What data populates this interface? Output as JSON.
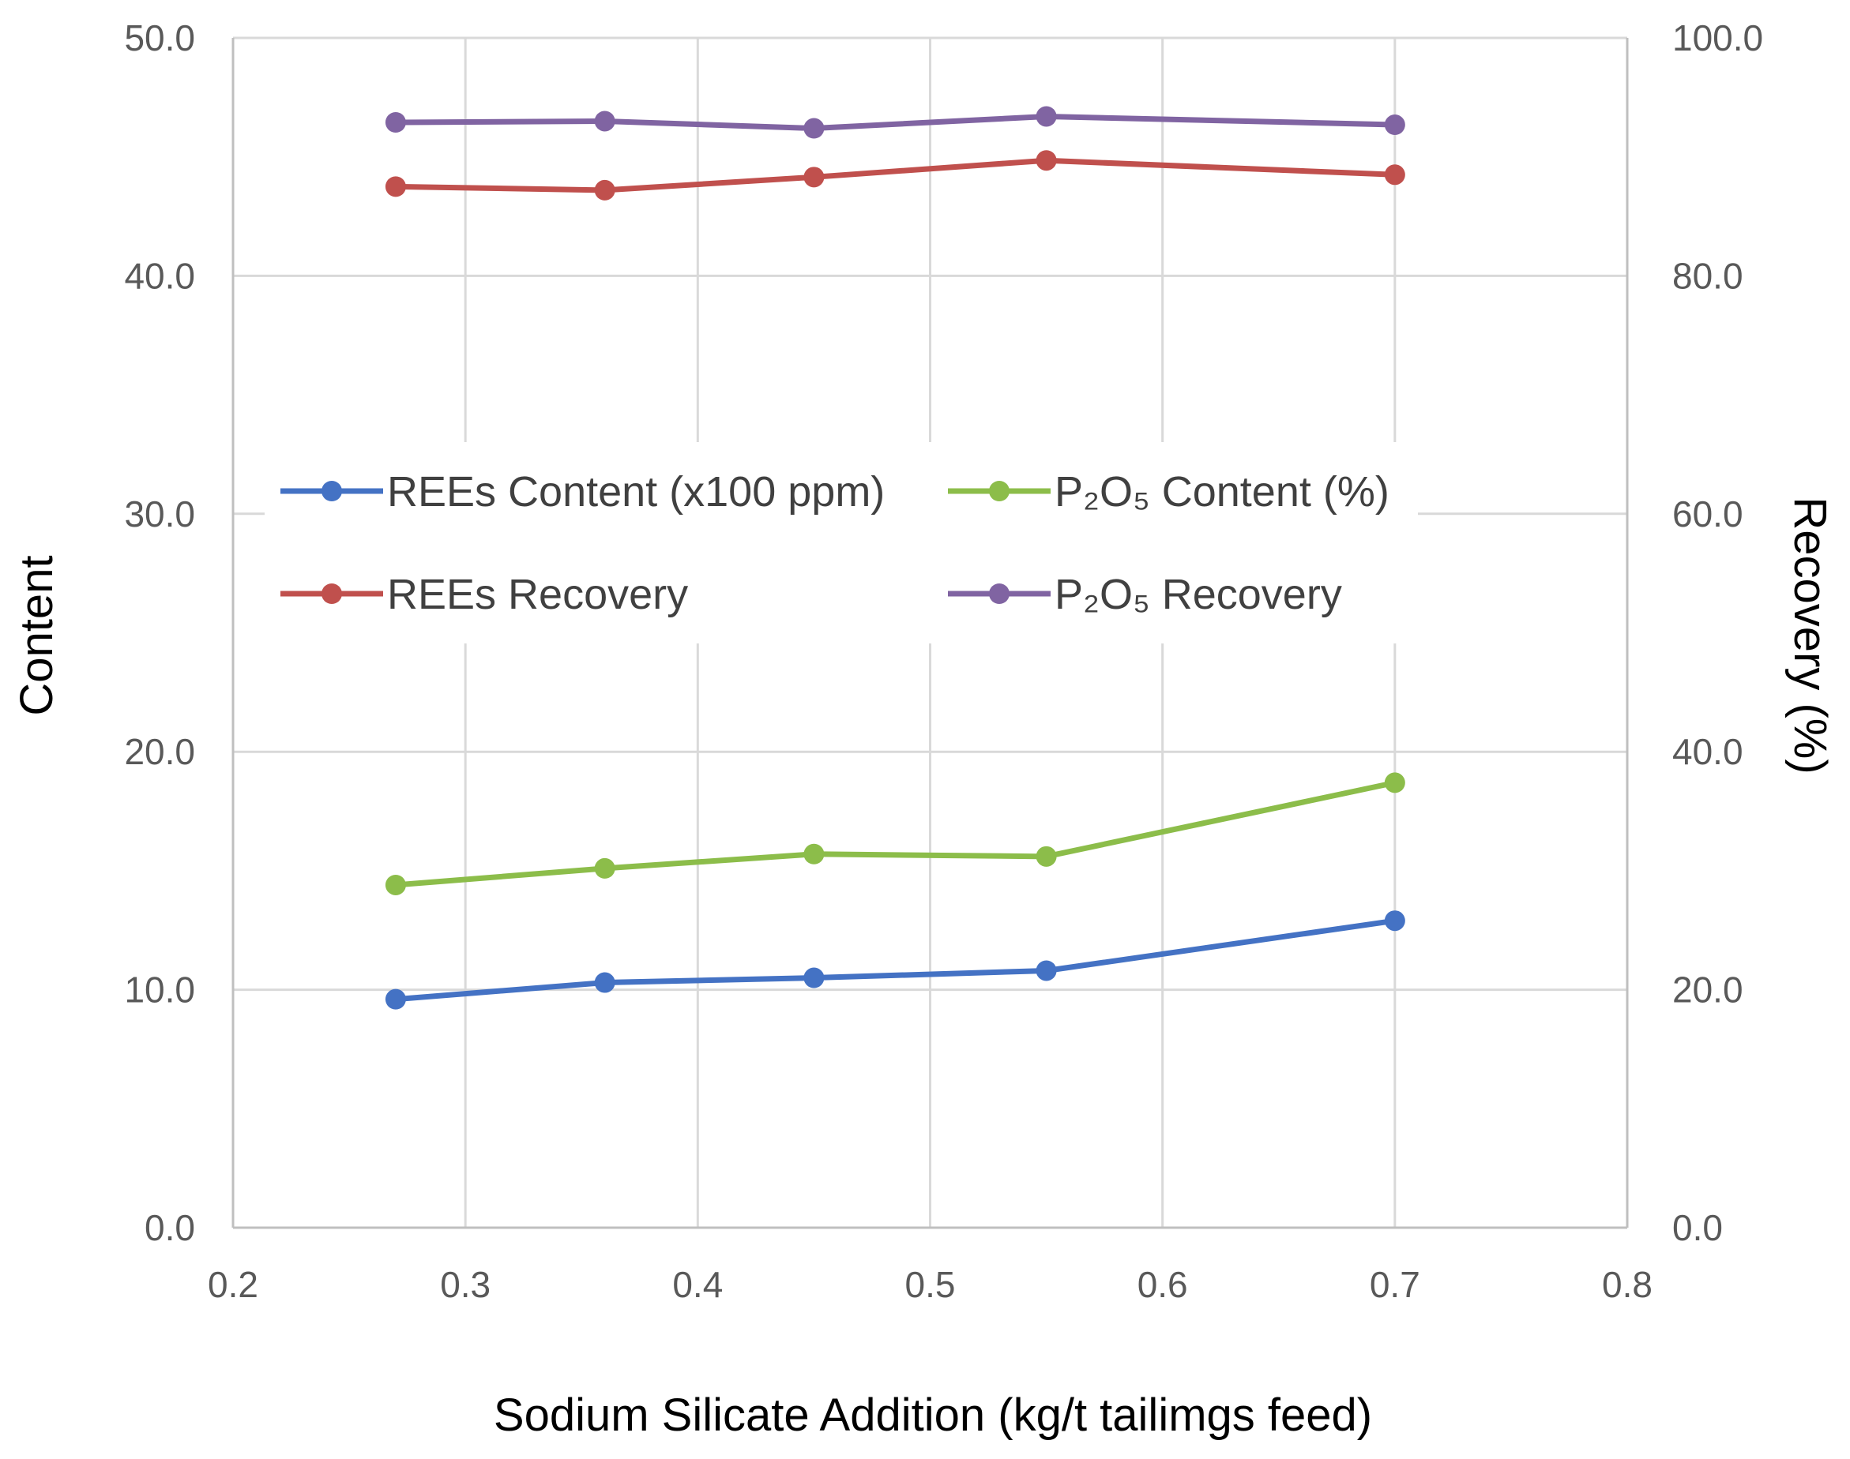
{
  "chart_data": {
    "type": "line",
    "xlabel": "Sodium Silicate Addition (kg/t tailimgs feed)",
    "ylabel": "Content",
    "y2label": "Recovery (%)",
    "xlim": [
      0.2,
      0.8
    ],
    "xticks": [
      "0.2",
      "0.3",
      "0.4",
      "0.5",
      "0.6",
      "0.7",
      "0.8"
    ],
    "ylim": [
      0,
      50
    ],
    "yticks": [
      "0.0",
      "10.0",
      "20.0",
      "30.0",
      "40.0",
      "50.0"
    ],
    "y2lim": [
      0,
      100
    ],
    "y2ticks": [
      "0.0",
      "20.0",
      "40.0",
      "60.0",
      "80.0",
      "100.0"
    ],
    "grid": true,
    "legend_position": "middle",
    "x": [
      0.27,
      0.36,
      0.45,
      0.55,
      0.7
    ],
    "series": [
      {
        "name": "REEs Content (x100 ppm)",
        "axis": "left",
        "color": "#4472C4",
        "values": [
          9.6,
          10.3,
          10.5,
          10.8,
          12.9
        ]
      },
      {
        "name": "P₂O₅ Content (%)",
        "axis": "left",
        "color": "#8CBD4A",
        "values": [
          14.4,
          15.1,
          15.7,
          15.6,
          18.7
        ]
      },
      {
        "name": "REEs Recovery",
        "axis": "right",
        "color": "#C0504D",
        "values": [
          87.5,
          87.2,
          88.3,
          89.7,
          88.5
        ]
      },
      {
        "name": "P₂O₅ Recovery",
        "axis": "right",
        "color": "#8064A2",
        "values": [
          92.9,
          93.0,
          92.4,
          93.4,
          92.7
        ]
      }
    ]
  }
}
